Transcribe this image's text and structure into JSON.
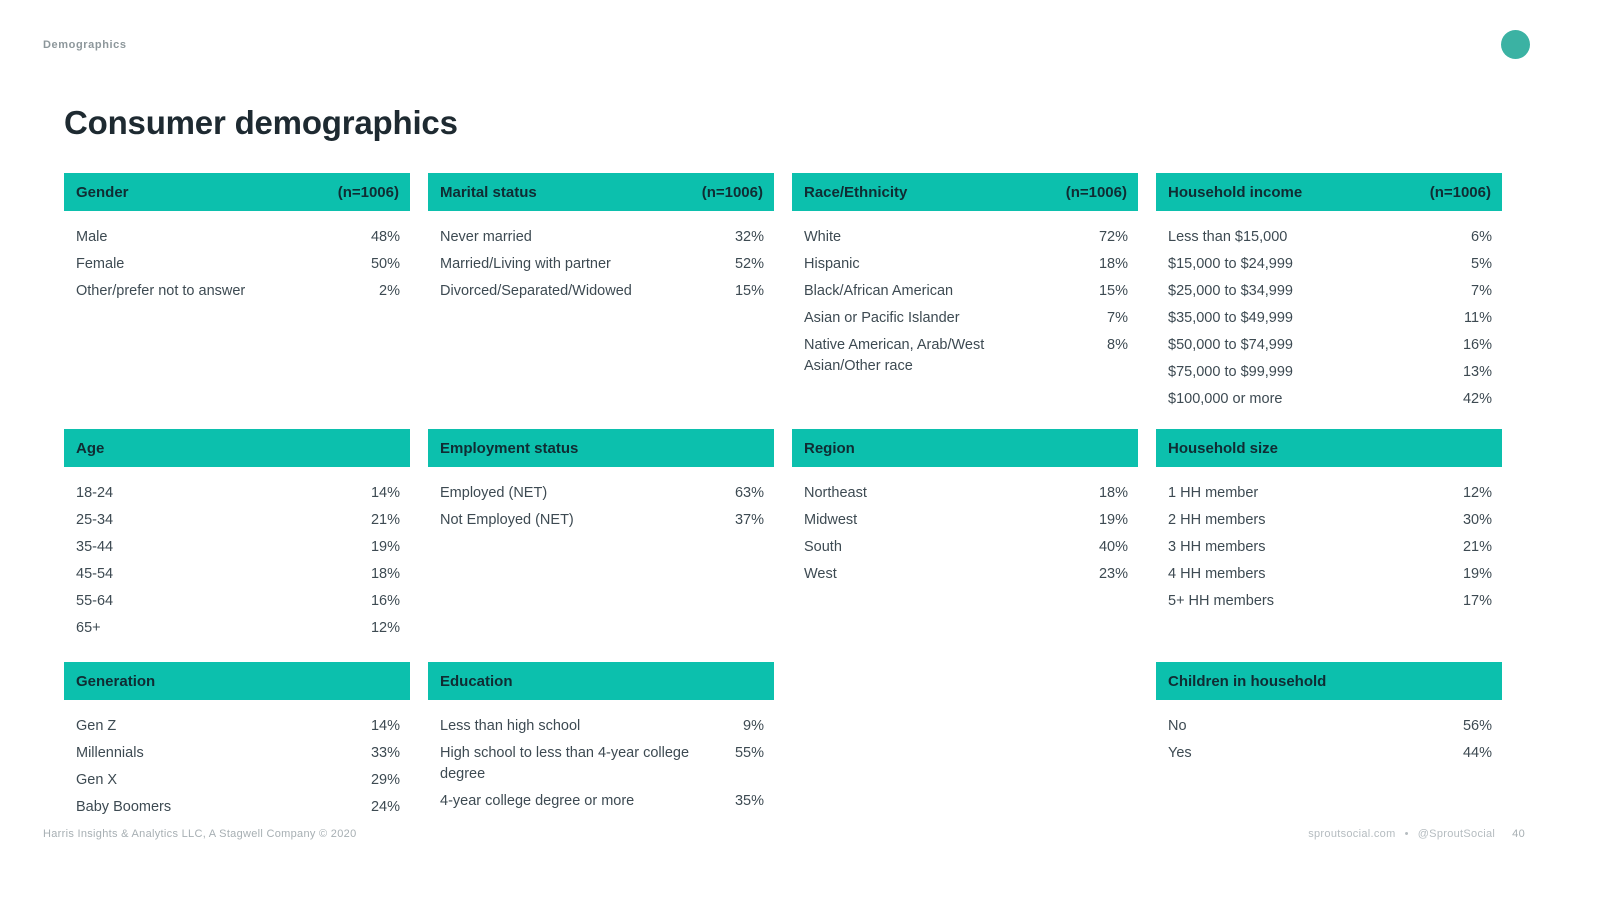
{
  "page": {
    "eyebrow": "Demographics",
    "title": "Consumer demographics",
    "footer_left": "Harris Insights & Analytics LLC, A Stagwell Company © 2020",
    "footer_site": "sproutsocial.com",
    "footer_sep": "•",
    "footer_handle": "@SproutSocial",
    "footer_page": "40"
  },
  "colors": {
    "teal": "#0cc0ad",
    "circle": "#3bb2a3",
    "header_text": "#102c33",
    "body_text": "#3d4a52"
  },
  "cards": [
    {
      "title": "Gender",
      "n": "(n=1006)",
      "rows": [
        {
          "label": "Male",
          "value": "48%"
        },
        {
          "label": "Female",
          "value": "50%"
        },
        {
          "label": "Other/prefer not to answer",
          "value": "2%"
        }
      ]
    },
    {
      "title": "Marital status",
      "n": "(n=1006)",
      "rows": [
        {
          "label": "Never married",
          "value": "32%"
        },
        {
          "label": "Married/Living with partner",
          "value": "52%"
        },
        {
          "label": "Divorced/Separated/Widowed",
          "value": "15%"
        }
      ]
    },
    {
      "title": "Race/Ethnicity",
      "n": "(n=1006)",
      "rows": [
        {
          "label": "White",
          "value": "72%"
        },
        {
          "label": "Hispanic",
          "value": "18%"
        },
        {
          "label": "Black/African American",
          "value": "15%"
        },
        {
          "label": "Asian or Pacific Islander",
          "value": "7%"
        },
        {
          "label": "Native American, Arab/West Asian/Other race",
          "value": "8%"
        }
      ]
    },
    {
      "title": "Household income",
      "n": "(n=1006)",
      "rows": [
        {
          "label": "Less than $15,000",
          "value": "6%"
        },
        {
          "label": "$15,000 to $24,999",
          "value": "5%"
        },
        {
          "label": "$25,000 to $34,999",
          "value": "7%"
        },
        {
          "label": "$35,000 to $49,999",
          "value": "11%"
        },
        {
          "label": "$50,000 to $74,999",
          "value": "16%"
        },
        {
          "label": "$75,000 to $99,999",
          "value": "13%"
        },
        {
          "label": "$100,000 or more",
          "value": "42%"
        }
      ]
    },
    {
      "title": "Age",
      "n": "",
      "rows": [
        {
          "label": "18-24",
          "value": "14%"
        },
        {
          "label": "25-34",
          "value": "21%"
        },
        {
          "label": "35-44",
          "value": "19%"
        },
        {
          "label": "45-54",
          "value": "18%"
        },
        {
          "label": "55-64",
          "value": "16%"
        },
        {
          "label": "65+",
          "value": "12%"
        }
      ]
    },
    {
      "title": "Employment status",
      "n": "",
      "rows": [
        {
          "label": "Employed (NET)",
          "value": "63%"
        },
        {
          "label": "Not Employed (NET)",
          "value": "37%"
        }
      ]
    },
    {
      "title": "Region",
      "n": "",
      "rows": [
        {
          "label": "Northeast",
          "value": "18%"
        },
        {
          "label": "Midwest",
          "value": "19%"
        },
        {
          "label": "South",
          "value": "40%"
        },
        {
          "label": "West",
          "value": "23%"
        }
      ]
    },
    {
      "title": "Household size",
      "n": "",
      "rows": [
        {
          "label": "1 HH member",
          "value": "12%"
        },
        {
          "label": "2 HH members",
          "value": "30%"
        },
        {
          "label": "3 HH members",
          "value": "21%"
        },
        {
          "label": "4 HH members",
          "value": "19%"
        },
        {
          "label": "5+ HH members",
          "value": "17%"
        }
      ]
    },
    {
      "title": "Generation",
      "n": "",
      "rows": [
        {
          "label": "Gen Z",
          "value": "14%"
        },
        {
          "label": "Millennials",
          "value": "33%"
        },
        {
          "label": "Gen X",
          "value": "29%"
        },
        {
          "label": "Baby Boomers",
          "value": "24%"
        }
      ]
    },
    {
      "title": "Education",
      "n": "",
      "rows": [
        {
          "label": "Less than high school",
          "value": "9%"
        },
        {
          "label": "High school to less than 4-year college degree",
          "value": "55%"
        },
        {
          "label": "4-year college degree or more",
          "value": "35%"
        }
      ]
    },
    null,
    {
      "title": "Children in household",
      "n": "",
      "rows": [
        {
          "label": "No",
          "value": "56%"
        },
        {
          "label": "Yes",
          "value": "44%"
        }
      ]
    }
  ]
}
